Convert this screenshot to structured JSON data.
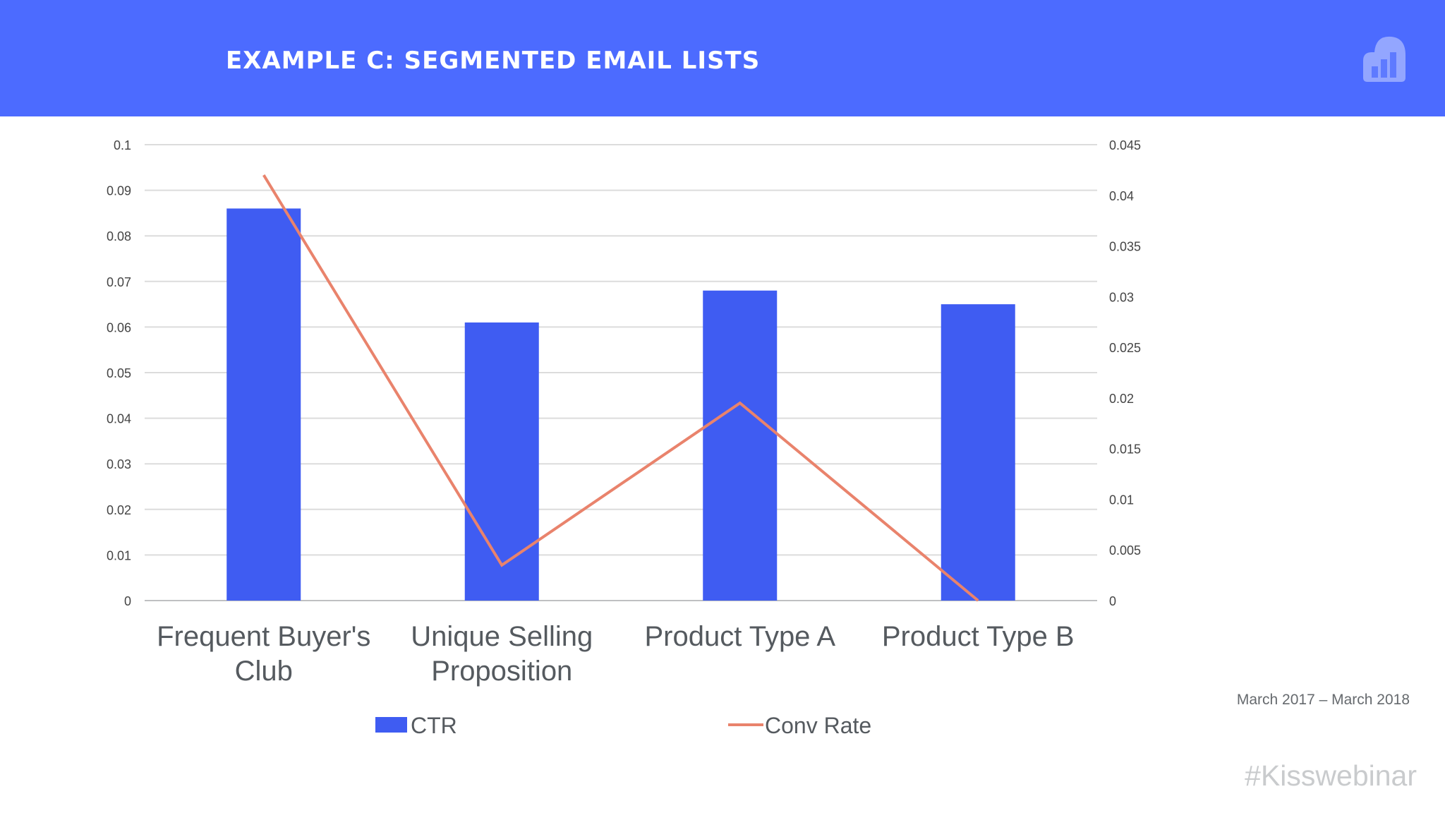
{
  "header": {
    "title": "EXAMPLE C: SEGMENTED EMAIL LISTS",
    "logo_icon": "bar-chart-cloud-icon"
  },
  "footer": {
    "period": "March 2017 – March 2018",
    "hashtag": "#Kisswebinar"
  },
  "colors": {
    "header_bg": "#4c6bff",
    "bar": "#3f5cf2",
    "line": "#e9836c"
  },
  "chart_data": {
    "type": "bar",
    "categories": [
      [
        "Frequent Buyer's",
        "Club"
      ],
      [
        "Unique Selling",
        "Proposition"
      ],
      [
        "Product Type A"
      ],
      [
        "Product Type B"
      ]
    ],
    "series": [
      {
        "name": "CTR",
        "type": "bar",
        "axis": "left",
        "values": [
          0.086,
          0.061,
          0.068,
          0.065
        ]
      },
      {
        "name": "Conv Rate",
        "type": "line",
        "axis": "right",
        "values": [
          0.042,
          0.0035,
          0.0195,
          0.0
        ]
      }
    ],
    "y_left": {
      "min": 0,
      "max": 0.1,
      "ticks": [
        "0",
        "0.01",
        "0.02",
        "0.03",
        "0.04",
        "0.05",
        "0.06",
        "0.07",
        "0.08",
        "0.09",
        "0.1"
      ]
    },
    "y_right": {
      "min": 0,
      "max": 0.045,
      "ticks": [
        "0",
        "0.005",
        "0.01",
        "0.015",
        "0.02",
        "0.025",
        "0.03",
        "0.035",
        "0.04",
        "0.045"
      ]
    },
    "grid": true,
    "legend": {
      "position": "bottom",
      "entries": [
        "CTR",
        "Conv Rate"
      ]
    }
  }
}
